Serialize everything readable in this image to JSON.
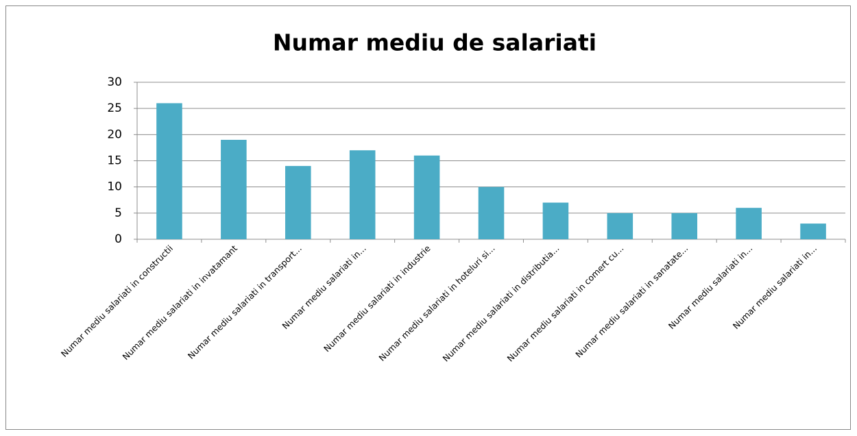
{
  "chart_data": {
    "type": "bar",
    "title": "Numar mediu de salariati",
    "categories": [
      "Numar mediu salariati in constructii",
      "Numar mediu salariati in invatamant",
      "Numar mediu salariati in transport...",
      "Numar mediu salariati in...",
      "Numar mediu salariati in industrie",
      "Numar mediu salariati in hoteluri si...",
      "Numar mediu salariati in distributia...",
      "Numar mediu salariati in comert cu...",
      "Numar mediu salariati in sanatate...",
      "Numar mediu salariati in...",
      "Numar mediu salariati in..."
    ],
    "values": [
      26,
      19,
      14,
      17,
      16,
      10,
      7,
      5,
      5,
      6,
      3
    ],
    "color": "#4bacc6",
    "ylim": [
      0,
      30
    ],
    "yticks": [
      0,
      5,
      10,
      15,
      20,
      25,
      30
    ],
    "grid": true
  }
}
